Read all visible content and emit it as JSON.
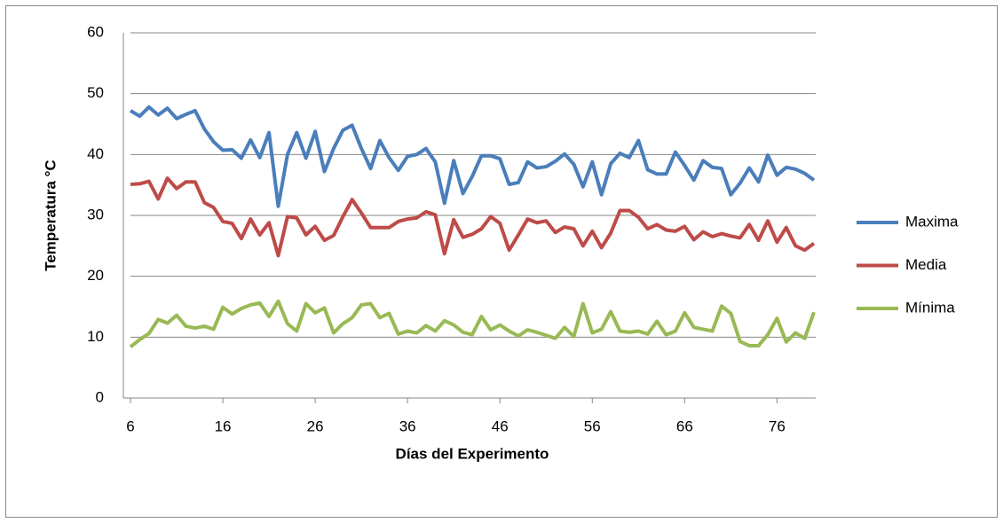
{
  "chart_data": {
    "type": "line",
    "x_label": "Días del Experimento",
    "y_label": "Temperatura °C",
    "x": [
      6,
      7,
      8,
      9,
      10,
      11,
      12,
      13,
      14,
      15,
      16,
      17,
      18,
      19,
      20,
      21,
      22,
      23,
      24,
      25,
      26,
      27,
      28,
      29,
      30,
      31,
      32,
      33,
      34,
      35,
      36,
      37,
      38,
      39,
      40,
      41,
      42,
      43,
      44,
      45,
      46,
      47,
      48,
      49,
      50,
      51,
      52,
      53,
      54,
      55,
      56,
      57,
      58,
      59,
      60,
      61,
      62,
      63,
      64,
      65,
      66,
      67,
      68,
      69,
      70,
      71,
      72,
      73,
      74,
      75,
      76,
      77,
      78,
      79,
      80
    ],
    "series": [
      {
        "name": "Maxima",
        "color": "#4a7ebb",
        "values": [
          47.2,
          46.3,
          47.8,
          46.5,
          47.6,
          45.9,
          46.6,
          47.2,
          44.2,
          42.1,
          40.7,
          40.8,
          39.4,
          42.4,
          39.5,
          43.6,
          31.5,
          40.0,
          43.6,
          39.4,
          43.8,
          37.2,
          41.0,
          44.0,
          44.8,
          41.0,
          37.7,
          42.3,
          39.5,
          37.4,
          39.7,
          40.0,
          41.0,
          38.8,
          32.0,
          39.0,
          33.6,
          36.4,
          39.8,
          39.8,
          39.3,
          35.1,
          35.4,
          38.8,
          37.8,
          38.0,
          38.9,
          40.1,
          38.4,
          34.7,
          38.8,
          33.4,
          38.5,
          40.2,
          39.5,
          42.3,
          37.5,
          36.8,
          36.8,
          40.4,
          38.2,
          35.8,
          39.0,
          37.9,
          37.7,
          33.4,
          35.3,
          37.8,
          35.5,
          39.9,
          36.6,
          37.9,
          37.6,
          36.9,
          35.8
        ]
      },
      {
        "name": "Media",
        "color": "#be4b48",
        "values": [
          35.1,
          35.2,
          35.6,
          32.7,
          36.1,
          34.4,
          35.5,
          35.5,
          32.1,
          31.3,
          29.0,
          28.7,
          26.2,
          29.4,
          26.8,
          28.8,
          23.4,
          29.8,
          29.6,
          26.8,
          28.2,
          25.9,
          26.7,
          29.8,
          32.6,
          30.4,
          28.0,
          28.0,
          28.0,
          29.0,
          29.4,
          29.6,
          30.6,
          30.1,
          23.7,
          29.3,
          26.4,
          26.9,
          27.8,
          29.8,
          28.7,
          24.3,
          26.8,
          29.4,
          28.8,
          29.1,
          27.2,
          28.1,
          27.8,
          25.0,
          27.4,
          24.7,
          27.1,
          30.8,
          30.8,
          29.7,
          27.8,
          28.5,
          27.6,
          27.4,
          28.2,
          26.0,
          27.3,
          26.5,
          27.0,
          26.6,
          26.3,
          28.5,
          25.9,
          29.1,
          25.6,
          28.0,
          25.0,
          24.3,
          25.4
        ]
      },
      {
        "name": "Mínima",
        "color": "#98b954",
        "values": [
          8.4,
          9.6,
          10.6,
          12.9,
          12.3,
          13.6,
          11.8,
          11.5,
          11.8,
          11.3,
          14.9,
          13.8,
          14.7,
          15.3,
          15.6,
          13.4,
          15.9,
          12.2,
          11.0,
          15.5,
          14.0,
          14.8,
          10.7,
          12.2,
          13.2,
          15.3,
          15.5,
          13.2,
          13.9,
          10.5,
          11.0,
          10.7,
          11.9,
          11.0,
          12.7,
          12.0,
          10.8,
          10.4,
          13.4,
          11.2,
          12.0,
          11.0,
          10.2,
          11.2,
          10.8,
          10.3,
          9.8,
          11.6,
          10.1,
          15.5,
          10.7,
          11.3,
          14.2,
          11.0,
          10.8,
          11.0,
          10.5,
          12.6,
          10.4,
          11.0,
          14.0,
          11.6,
          11.3,
          11.0,
          15.1,
          13.9,
          9.3,
          8.6,
          8.6,
          10.4,
          13.1,
          9.2,
          10.7,
          9.8,
          14.1
        ]
      }
    ],
    "xlim": [
      6,
      80
    ],
    "xticks": [
      6,
      16,
      26,
      36,
      46,
      56,
      66,
      76
    ],
    "ylim": [
      0,
      60
    ],
    "yticks": [
      0,
      10,
      20,
      30,
      40,
      50,
      60
    ],
    "grid": true,
    "legend": "right"
  }
}
